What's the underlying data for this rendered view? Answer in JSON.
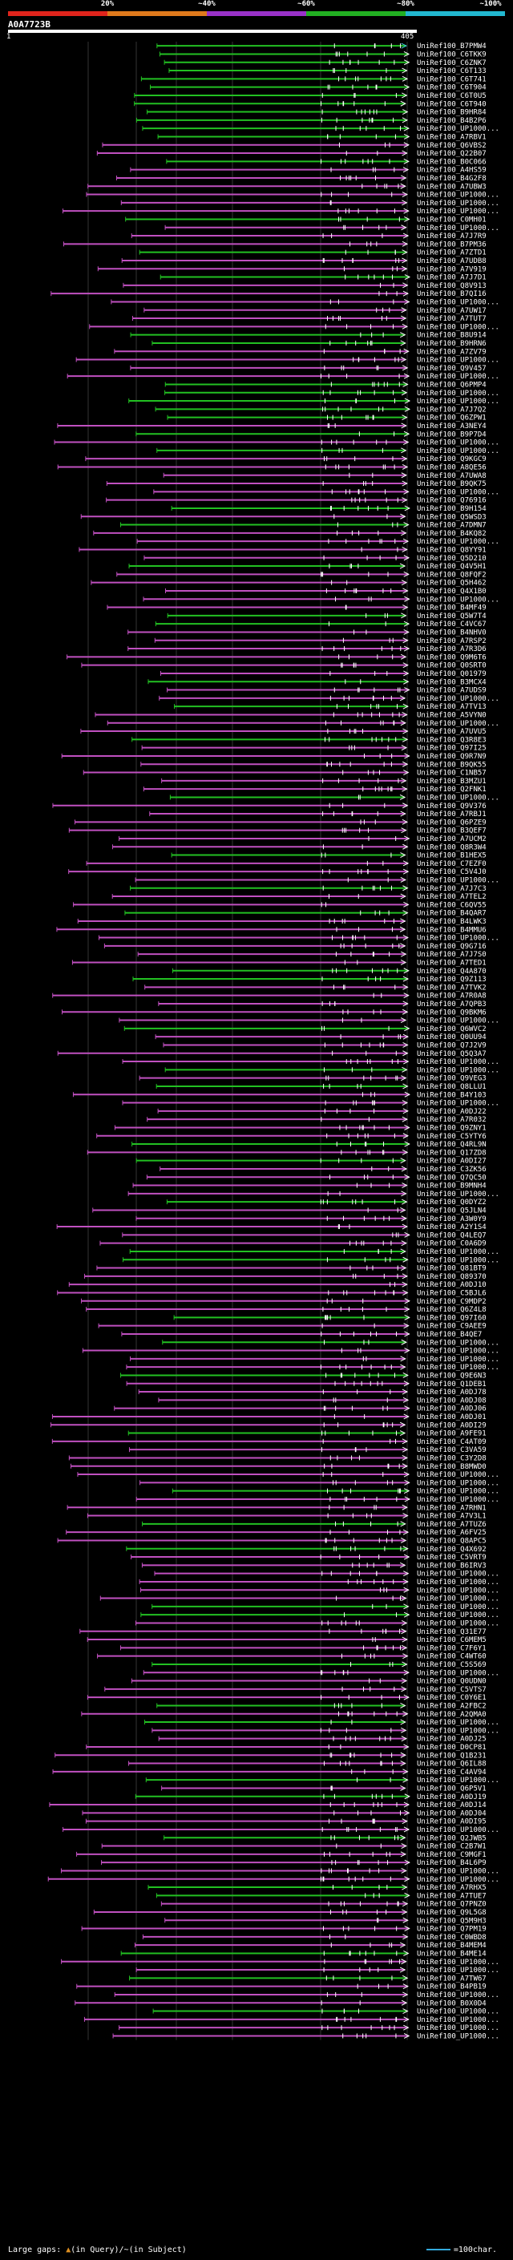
{
  "legend": {
    "segments": [
      {
        "color": "#e0241c",
        "from": 0,
        "to": 0.2
      },
      {
        "color": "#e07a1c",
        "from": 0.2,
        "to": 0.4
      },
      {
        "color": "#9a32c8",
        "from": 0.4,
        "to": 0.6
      },
      {
        "color": "#22b022",
        "from": 0.6,
        "to": 0.8
      },
      {
        "color": "#22b8d0",
        "from": 0.8,
        "to": 1.0
      }
    ],
    "ticks": [
      {
        "label": "20%",
        "pos": 0.2
      },
      {
        "label": "~40%",
        "pos": 0.4
      },
      {
        "label": "~60%",
        "pos": 0.6
      },
      {
        "label": "~80%",
        "pos": 0.8
      },
      {
        "label": "~100%",
        "pos": 1.0
      }
    ]
  },
  "query": {
    "id": "A0A7723B",
    "start": "1",
    "end": "405"
  },
  "colors": {
    "green": "#22c022",
    "magenta": "#c050c0",
    "cyan": "#40c8e0",
    "orange": "#e09020",
    "label": "#ffffff"
  },
  "hits": [
    "UniRef100_B7PMW4",
    "UniRef100_C6TKK9",
    "UniRef100_C6ZNK7",
    "UniRef100_C6T133",
    "UniRef100_C6T741",
    "UniRef100_C6T904",
    "UniRef100_C6T0U5",
    "UniRef100_C6T940",
    "UniRef100_B9HR84",
    "UniRef100_B4B2P6",
    "UniRef100_UP1000...",
    "UniRef100_A7RBV1",
    "UniRef100_Q6VBS2",
    "UniRef100_Q22B07",
    "UniRef100_B0C066",
    "UniRef100_A4HS59",
    "UniRef100_B4G2F8",
    "UniRef100_A7UBW3",
    "UniRef100_UP1000...",
    "UniRef100_UP1000...",
    "UniRef100_UP1000...",
    "UniRef100_C0MH01",
    "UniRef100_UP1000...",
    "UniRef100_A7J7R9",
    "UniRef100_B7PM36",
    "UniRef100_A7ZTD1",
    "UniRef100_A7UDB8",
    "UniRef100_A7V919",
    "UniRef100_A7J7D1",
    "UniRef100_Q8V913",
    "UniRef100_B7QI16",
    "UniRef100_UP1000...",
    "UniRef100_A7UW17",
    "UniRef100_A7TUT7",
    "UniRef100_UP1000...",
    "UniRef100_B8U914",
    "UniRef100_B9HRN6",
    "UniRef100_A7ZV79",
    "UniRef100_UP1000...",
    "UniRef100_Q9V457",
    "UniRef100_UP1000...",
    "UniRef100_Q6PMP4",
    "UniRef100_UP1000...",
    "UniRef100_UP1000...",
    "UniRef100_A7J7Q2",
    "UniRef100_Q6ZPW1",
    "UniRef100_A3NEY4",
    "UniRef100_B9P7D4",
    "UniRef100_UP1000...",
    "UniRef100_UP1000...",
    "UniRef100_Q9KGC9",
    "UniRef100_A8QE56",
    "UniRef100_A7UWA8",
    "UniRef100_B9QK75",
    "UniRef100_UP1000...",
    "UniRef100_Q76916",
    "UniRef100_B9H154",
    "UniRef100_Q5WSD3",
    "UniRef100_A7DMN7",
    "UniRef100_B4KQ82",
    "UniRef100_UP1000...",
    "UniRef100_Q8YY91",
    "UniRef100_Q5D210",
    "UniRef100_Q4V5H1",
    "UniRef100_Q8FQF2",
    "UniRef100_Q5H462",
    "UniRef100_Q4X1B0",
    "UniRef100_UP1000...",
    "UniRef100_B4MF49",
    "UniRef100_Q5W7T4",
    "UniRef100_C4VC67",
    "UniRef100_B4NHV0",
    "UniRef100_A7RSP2",
    "UniRef100_A7R3D6",
    "UniRef100_Q9M6T6",
    "UniRef100_Q0SRT0",
    "UniRef100_Q01979",
    "UniRef100_B3MCX4",
    "UniRef100_A7UDS9",
    "UniRef100_UP1000...",
    "UniRef100_A7TV13",
    "UniRef100_A5VYN0",
    "UniRef100_UP1000...",
    "UniRef100_A7UVU5",
    "UniRef100_Q3R8E3",
    "UniRef100_Q97I25",
    "UniRef100_Q9R7N9",
    "UniRef100_B9QK55",
    "UniRef100_C1NB57",
    "UniRef100_B3MZU1",
    "UniRef100_Q2FNK1",
    "UniRef100_UP1000...",
    "UniRef100_Q9V376",
    "UniRef100_A7RBJ1",
    "UniRef100_Q6PZE9",
    "UniRef100_B3QEF7",
    "UniRef100_A7UCM2",
    "UniRef100_Q8R3W4",
    "UniRef100_B1HEX5",
    "UniRef100_C7EZF0",
    "UniRef100_C5V4J0",
    "UniRef100_UP1000...",
    "UniRef100_A7J7C3",
    "UniRef100_A7TEL2",
    "UniRef100_C6QV55",
    "UniRef100_B4QAR7",
    "UniRef100_B4LWK3",
    "UniRef100_B4MMU6",
    "UniRef100_UP1000...",
    "UniRef100_Q9G716",
    "UniRef100_A7J7S0",
    "UniRef100_A7TED1",
    "UniRef100_Q4A870",
    "UniRef100_Q9Z113",
    "UniRef100_A7TVK2",
    "UniRef100_A7R0A8",
    "UniRef100_A7QPB3",
    "UniRef100_Q9BKM6",
    "UniRef100_UP1000...",
    "UniRef100_Q6WVC2",
    "UniRef100_Q0UU94",
    "UniRef100_Q7J2V9",
    "UniRef100_Q5Q3A7",
    "UniRef100_UP1000...",
    "UniRef100_UP1000...",
    "UniRef100_Q9VEG3",
    "UniRef100_Q8LLU1",
    "UniRef100_B4Y103",
    "UniRef100_UP1000...",
    "UniRef100_A0DJ22",
    "UniRef100_A7R032",
    "UniRef100_Q9ZNY1",
    "UniRef100_C5YTY6",
    "UniRef100_Q4RL9N",
    "UniRef100_Q17ZD8",
    "UniRef100_A0DI27",
    "UniRef100_C3ZK56",
    "UniRef100_Q7QC50",
    "UniRef100_B9MNH4",
    "UniRef100_UP1000...",
    "UniRef100_Q0DYZ2",
    "UniRef100_Q5JLN4",
    "UniRef100_A3W0Y9",
    "UniRef100_A2Y1S4",
    "UniRef100_Q4LEQ7",
    "UniRef100_C0A6D9",
    "UniRef100_UP1000...",
    "UniRef100_UP1000...",
    "UniRef100_Q81BT9",
    "UniRef100_Q89370",
    "UniRef100_A0DJ10",
    "UniRef100_C5BJL6",
    "UniRef100_C9MDP2",
    "UniRef100_Q6Z4L8",
    "UniRef100_Q97I60",
    "UniRef100_C9AEE9",
    "UniRef100_B4QE7",
    "UniRef100_UP1000...",
    "UniRef100_UP1000...",
    "UniRef100_UP1000...",
    "UniRef100_UP1000...",
    "UniRef100_Q9E6N3",
    "UniRef100_Q1DEB1",
    "UniRef100_A0DJ78",
    "UniRef100_A0DJ08",
    "UniRef100_A0DJ06",
    "UniRef100_A0DJ01",
    "UniRef100_A0DI29",
    "UniRef100_A9FE91",
    "UniRef100_C4AT09",
    "UniRef100_C3VA59",
    "UniRef100_C3Y2D8",
    "UniRef100_B8MWD0",
    "UniRef100_UP1000...",
    "UniRef100_UP1000...",
    "UniRef100_UP1000...",
    "UniRef100_UP1000...",
    "UniRef100_A7RHN1",
    "UniRef100_A7V3L1",
    "UniRef100_A7TUZ6",
    "UniRef100_A6FV25",
    "UniRef100_Q8APC5",
    "UniRef100_Q4X692",
    "UniRef100_C5VRT9",
    "UniRef100_B6IRV3",
    "UniRef100_UP1000...",
    "UniRef100_UP1000...",
    "UniRef100_UP1000...",
    "UniRef100_UP1000...",
    "UniRef100_UP1000...",
    "UniRef100_UP1000...",
    "UniRef100_UP1000...",
    "UniRef100_Q31E77",
    "UniRef100_C6MEM5",
    "UniRef100_C7F6Y1",
    "UniRef100_C4WT60",
    "UniRef100_C5S569",
    "UniRef100_UP1000...",
    "UniRef100_Q0UDN0",
    "UniRef100_C5VTS7",
    "UniRef100_C0Y6E1",
    "UniRef100_A2FBC2",
    "UniRef100_A2QMA0",
    "UniRef100_UP1000...",
    "UniRef100_UP1000...",
    "UniRef100_A0DJ25",
    "UniRef100_D0CP81",
    "UniRef100_Q1B231",
    "UniRef100_Q6IL88",
    "UniRef100_C4AV94",
    "UniRef100_UP1000...",
    "UniRef100_Q6P5V1",
    "UniRef100_A0DJ19",
    "UniRef100_A0DJ14",
    "UniRef100_A0DJ04",
    "UniRef100_A0DI95",
    "UniRef100_UP1000...",
    "UniRef100_Q2JWB5",
    "UniRef100_C2B7W1",
    "UniRef100_C9MGF1",
    "UniRef100_B4L6P9",
    "UniRef100_UP1000...",
    "UniRef100_UP1000...",
    "UniRef100_A7RHX5",
    "UniRef100_A7TUE7",
    "UniRef100_Q7PNZ0",
    "UniRef100_Q9L5G8",
    "UniRef100_Q5M9H3",
    "UniRef100_Q7PM19",
    "UniRef100_C0WBD8",
    "UniRef100_B4MEM4",
    "UniRef100_B4ME14",
    "UniRef100_UP1000...",
    "UniRef100_UP1000...",
    "UniRef100_A7TW67",
    "UniRef100_B4PB19",
    "UniRef100_UP1000...",
    "UniRef100_B0X0D4",
    "UniRef100_UP1000...",
    "UniRef100_UP1000...",
    "UniRef100_UP1000...",
    "UniRef100_UP1000..."
  ],
  "footer": {
    "left_label": "Large gaps:",
    "query_gap_marker": "▲",
    "query_gap_text": "(in Query)/",
    "subject_gap_marker": "~",
    "subject_gap_text": "(in Subject)",
    "scale_text": "=100char."
  }
}
